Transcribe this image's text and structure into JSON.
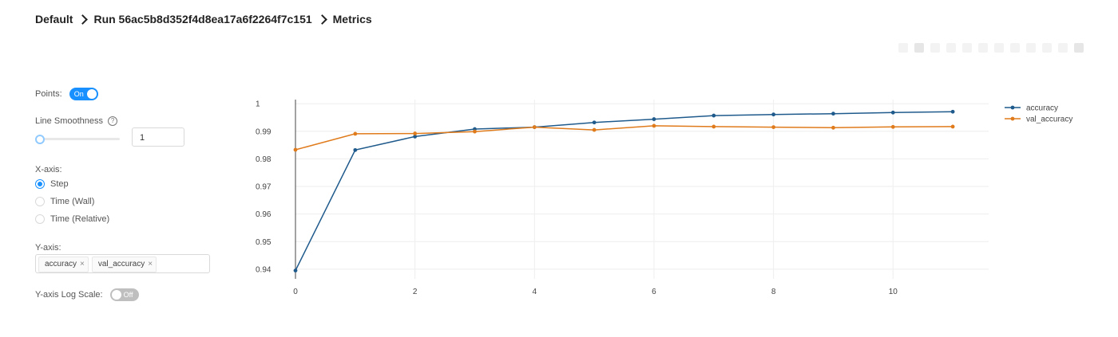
{
  "breadcrumb": {
    "experiment": "Default",
    "run": "Run 56ac5b8d352f4d8ea17a6f2264f7c151",
    "page": "Metrics"
  },
  "controls": {
    "points_label": "Points:",
    "points_toggle": "On",
    "smoothness_label": "Line Smoothness",
    "smoothness_value": "1",
    "xaxis_label": "X-axis:",
    "xaxis_options": [
      "Step",
      "Time (Wall)",
      "Time (Relative)"
    ],
    "xaxis_selected": "Step",
    "yaxis_label": "Y-axis:",
    "yaxis_tags": [
      "accuracy",
      "val_accuracy"
    ],
    "log_label": "Y-axis Log Scale:",
    "log_toggle": "Off"
  },
  "icons": {
    "help": "question-circle-icon",
    "tag_remove": "close-icon",
    "breadcrumb_sep": "chevron-right-icon"
  },
  "chart_data": {
    "type": "line",
    "x": [
      0,
      1,
      2,
      3,
      4,
      5,
      6,
      7,
      8,
      9,
      10,
      11
    ],
    "xlim": [
      0,
      11.6
    ],
    "ylim": [
      0.9365,
      1.0015
    ],
    "xticks": [
      0,
      2,
      4,
      6,
      8,
      10
    ],
    "yticks": [
      0.94,
      0.95,
      0.96,
      0.97,
      0.98,
      0.99,
      1
    ],
    "ytick_labels": [
      "0.94",
      "0.95",
      "0.96",
      "0.97",
      "0.98",
      "0.99",
      "1"
    ],
    "grid": true,
    "legend": "top-right",
    "series": [
      {
        "name": "accuracy",
        "color": "#1f5a8c",
        "values": [
          0.9395,
          0.9832,
          0.9881,
          0.9908,
          0.9915,
          0.9932,
          0.9944,
          0.9957,
          0.9961,
          0.9964,
          0.9968,
          0.9971
        ]
      },
      {
        "name": "val_accuracy",
        "color": "#e07b1c",
        "values": [
          0.9833,
          0.9891,
          0.9892,
          0.9899,
          0.9915,
          0.9905,
          0.992,
          0.9917,
          0.9915,
          0.9913,
          0.9916,
          0.9917
        ]
      }
    ]
  }
}
